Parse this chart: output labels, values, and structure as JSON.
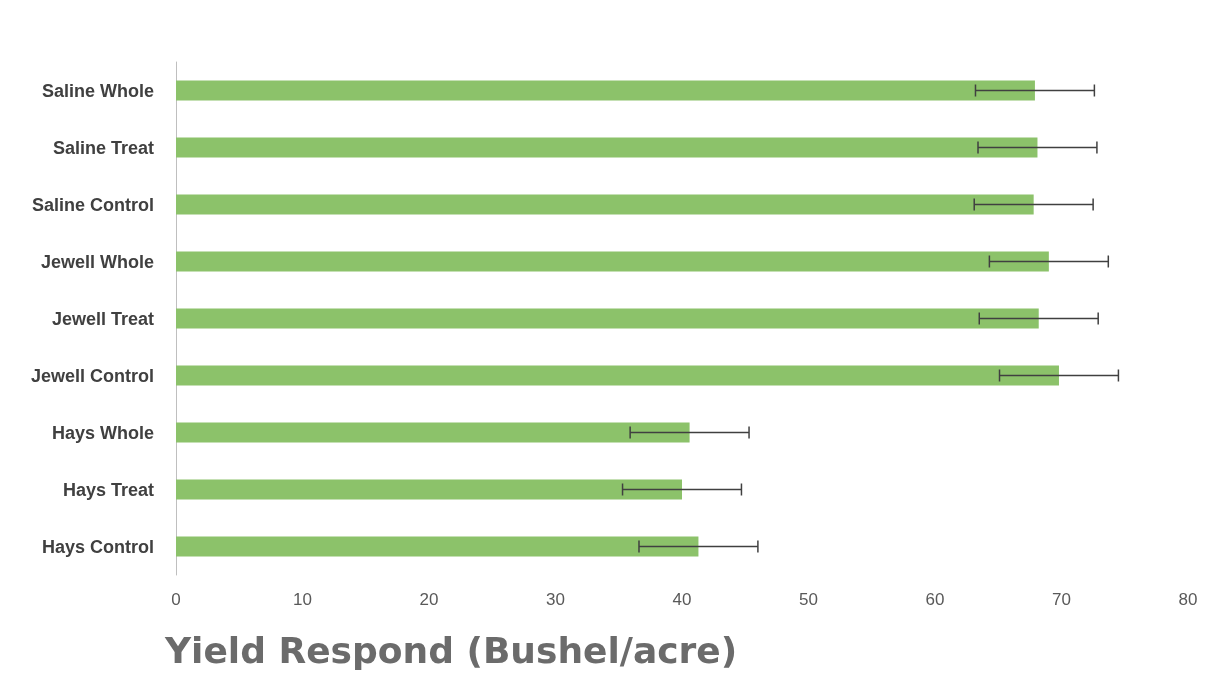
{
  "chart_data": {
    "type": "bar",
    "orientation": "horizontal",
    "xlabel": "Yield Respond (Bushel/acre)",
    "categories": [
      "Saline Whole",
      "Saline Treat",
      "Saline Control",
      "Jewell Whole",
      "Jewell Treat",
      "Jewell Control",
      "Hays Whole",
      "Hays Treat",
      "Hays Control"
    ],
    "values": [
      67.9,
      68.1,
      67.8,
      69.0,
      68.2,
      69.8,
      40.6,
      40.0,
      41.3
    ],
    "errors": [
      4.7,
      4.7,
      4.7,
      4.7,
      4.7,
      4.7,
      4.7,
      4.7,
      4.7
    ],
    "color": "#8cc26a",
    "xlim": [
      0,
      80
    ],
    "xticks": [
      0,
      10,
      20,
      30,
      40,
      50,
      60,
      70,
      80
    ],
    "grid": false
  }
}
